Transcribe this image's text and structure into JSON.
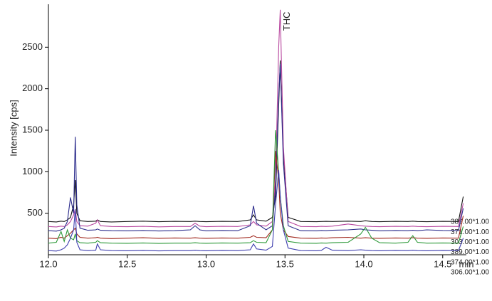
{
  "chart_data": {
    "type": "line",
    "y_label": "Intensity [cps]",
    "x_unit_label": "min",
    "annotation": "THC",
    "x": [
      12.0,
      12.05,
      12.08,
      12.1,
      12.12,
      12.14,
      12.16,
      12.17,
      12.18,
      12.2,
      12.25,
      12.3,
      12.31,
      12.33,
      12.4,
      12.5,
      12.6,
      12.7,
      12.8,
      12.9,
      12.93,
      12.96,
      13.0,
      13.1,
      13.2,
      13.28,
      13.3,
      13.32,
      13.38,
      13.42,
      13.44,
      13.46,
      13.47,
      13.49,
      13.52,
      13.6,
      13.7,
      13.73,
      13.76,
      13.8,
      13.9,
      13.98,
      14.01,
      14.05,
      14.1,
      14.2,
      14.28,
      14.31,
      14.34,
      14.4,
      14.5,
      14.6,
      14.63
    ],
    "series": [
      {
        "name": "386.00*1.00",
        "color": "#111111",
        "values": [
          400,
          395,
          405,
          400,
          420,
          450,
          600,
          900,
          500,
          410,
          400,
          405,
          420,
          400,
          395,
          400,
          405,
          398,
          402,
          400,
          405,
          400,
          398,
          402,
          400,
          420,
          480,
          420,
          405,
          450,
          700,
          1800,
          2340,
          1200,
          450,
          400,
          398,
          400,
          402,
          400,
          405,
          400,
          410,
          400,
          398,
          402,
          400,
          405,
          400,
          398,
          402,
          400,
          700
        ]
      },
      {
        "name": "371.00*1.00",
        "color": "#b8489f",
        "values": [
          340,
          335,
          345,
          340,
          360,
          400,
          480,
          550,
          400,
          350,
          345,
          380,
          420,
          350,
          340,
          338,
          342,
          336,
          340,
          340,
          380,
          345,
          338,
          342,
          340,
          360,
          400,
          360,
          345,
          400,
          900,
          2500,
          2950,
          1300,
          400,
          340,
          338,
          342,
          340,
          345,
          370,
          350,
          345,
          340,
          338,
          342,
          340,
          345,
          340,
          338,
          342,
          340,
          620
        ]
      },
      {
        "name": "303.00*1.00",
        "color": "#2c2c8c",
        "values": [
          290,
          285,
          300,
          320,
          400,
          690,
          500,
          1420,
          600,
          320,
          295,
          300,
          310,
          295,
          290,
          288,
          292,
          286,
          290,
          300,
          350,
          300,
          288,
          292,
          290,
          350,
          590,
          380,
          300,
          350,
          800,
          1900,
          2300,
          1100,
          350,
          290,
          288,
          292,
          290,
          295,
          300,
          310,
          300,
          295,
          288,
          292,
          290,
          295,
          290,
          300,
          292,
          290,
          560
        ]
      },
      {
        "name": "389.00*1.00",
        "color": "#a0281e",
        "values": [
          200,
          195,
          210,
          200,
          230,
          260,
          300,
          320,
          250,
          210,
          200,
          205,
          210,
          200,
          195,
          200,
          205,
          198,
          202,
          200,
          205,
          200,
          198,
          202,
          200,
          210,
          230,
          210,
          205,
          300,
          1250,
          900,
          500,
          300,
          220,
          200,
          198,
          202,
          200,
          205,
          210,
          200,
          205,
          200,
          198,
          202,
          200,
          205,
          200,
          198,
          202,
          200,
          470
        ]
      },
      {
        "name": "374.00*1.00",
        "color": "#2e9a3a",
        "values": [
          140,
          150,
          280,
          160,
          300,
          200,
          180,
          250,
          170,
          145,
          140,
          150,
          170,
          145,
          140,
          138,
          142,
          136,
          140,
          140,
          145,
          140,
          138,
          142,
          140,
          145,
          170,
          150,
          145,
          300,
          1500,
          1000,
          700,
          350,
          160,
          140,
          138,
          142,
          140,
          145,
          150,
          250,
          330,
          200,
          145,
          140,
          150,
          230,
          150,
          140,
          142,
          140,
          340
        ]
      },
      {
        "name": "306.00*1.00",
        "color": "#3d3dae",
        "values": [
          50,
          45,
          60,
          80,
          120,
          200,
          300,
          550,
          150,
          60,
          50,
          55,
          130,
          60,
          50,
          48,
          52,
          46,
          50,
          50,
          55,
          50,
          48,
          52,
          50,
          60,
          130,
          70,
          55,
          100,
          600,
          1020,
          700,
          300,
          80,
          50,
          48,
          52,
          90,
          55,
          50,
          60,
          55,
          50,
          48,
          52,
          50,
          55,
          50,
          48,
          52,
          50,
          200
        ]
      }
    ],
    "xlim": [
      12.0,
      14.65
    ],
    "ylim": [
      0,
      3000
    ],
    "xticks": [
      {
        "value": 12.0,
        "label": "12.0"
      },
      12.5,
      {
        "value": 13.0,
        "label": "13.0"
      },
      13.5,
      {
        "value": 14.0,
        "label": "14.0"
      },
      14.5
    ],
    "yticks": [
      500,
      1000,
      1500,
      2000,
      2500
    ],
    "grid": false
  }
}
